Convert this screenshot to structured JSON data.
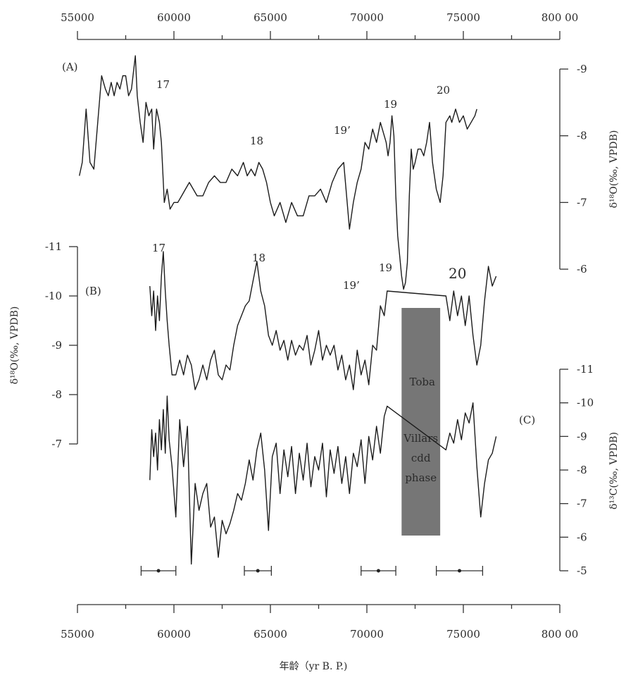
{
  "chart_data": [
    {
      "panel": "(A)",
      "type": "line",
      "xlim": [
        55000,
        80000
      ],
      "ylim": [
        -6,
        -9
      ],
      "y_reversed": true,
      "ylabel": "δ¹⁸O(‰, VPDB)",
      "yticks": [
        "-9",
        "-8",
        "-7",
        "-6"
      ],
      "annotations": [
        "17",
        "18",
        "19’",
        "19",
        "20"
      ],
      "series": [
        {
          "x": [
            55100,
            55250,
            55450,
            55650,
            55850,
            56050,
            56250,
            56450,
            56600,
            56750,
            56900,
            57050,
            57200,
            57350,
            57500,
            57650,
            57800,
            58000,
            58100,
            58250,
            58400,
            58550,
            58700,
            58850,
            58950,
            59100,
            59250,
            59350,
            59500,
            59650,
            59800,
            60000,
            60200,
            60400,
            60600,
            60800,
            61000,
            61200,
            61500,
            61800,
            62100,
            62400,
            62700,
            63000,
            63300,
            63600,
            63800,
            64000,
            64200,
            64400,
            64600,
            64800,
            65000,
            65200,
            65500,
            65800,
            66100,
            66400,
            66700,
            67000,
            67300,
            67600,
            67900,
            68200,
            68500,
            68800,
            69100,
            69300,
            69500,
            69700,
            69900,
            70100,
            70300,
            70500,
            70700,
            70900,
            71000,
            71100,
            71200,
            71300,
            71400,
            71500,
            71600,
            71700,
            71800,
            71900,
            72000,
            72100,
            72200,
            72300,
            72400,
            72500,
            72650,
            72800,
            72950,
            73100,
            73250,
            73400,
            73600,
            73800,
            73950,
            74100,
            74300,
            74400,
            74600,
            74800,
            75000,
            75200,
            75400,
            75600,
            75700
          ],
          "y": [
            -7.4,
            -7.6,
            -8.4,
            -7.6,
            -7.5,
            -8.2,
            -8.9,
            -8.7,
            -8.6,
            -8.8,
            -8.6,
            -8.8,
            -8.7,
            -8.9,
            -8.9,
            -8.6,
            -8.7,
            -9.2,
            -8.6,
            -8.2,
            -7.9,
            -8.5,
            -8.3,
            -8.4,
            -7.8,
            -8.4,
            -8.2,
            -7.9,
            -7.0,
            -7.2,
            -6.9,
            -7.0,
            -7.0,
            -7.1,
            -7.2,
            -7.3,
            -7.2,
            -7.1,
            -7.1,
            -7.3,
            -7.4,
            -7.3,
            -7.3,
            -7.5,
            -7.4,
            -7.6,
            -7.4,
            -7.5,
            -7.4,
            -7.6,
            -7.5,
            -7.3,
            -7.0,
            -6.8,
            -7.0,
            -6.7,
            -7.0,
            -6.8,
            -6.8,
            -7.1,
            -7.1,
            -7.2,
            -7.0,
            -7.3,
            -7.5,
            -7.6,
            -6.6,
            -7.0,
            -7.3,
            -7.5,
            -7.9,
            -7.8,
            -8.1,
            -7.9,
            -8.2,
            -8.0,
            -7.9,
            -7.7,
            -7.9,
            -8.3,
            -8.0,
            -7.1,
            -6.5,
            -6.2,
            -5.9,
            -5.7,
            -5.8,
            -6.1,
            -7.1,
            -7.8,
            -7.5,
            -7.6,
            -7.8,
            -7.8,
            -7.7,
            -7.9,
            -8.2,
            -7.6,
            -7.2,
            -7.0,
            -7.4,
            -8.2,
            -8.3,
            -8.2,
            -8.4,
            -8.2,
            -8.3,
            -8.1,
            -8.2,
            -8.3,
            -8.4
          ]
        }
      ]
    },
    {
      "panel": "(B)",
      "type": "line",
      "xlim": [
        55000,
        80000
      ],
      "ylim": [
        -7,
        -11
      ],
      "y_reversed": true,
      "ylabel": "δ¹⁸O(‰, VPDB)",
      "yticks": [
        "-11",
        "-10",
        "-9",
        "-8",
        "-7"
      ],
      "annotations": [
        "17",
        "18",
        "19’",
        "19",
        "20"
      ],
      "series": [
        {
          "x": [
            58750,
            58850,
            58950,
            59050,
            59150,
            59250,
            59350,
            59450,
            59550,
            59650,
            59750,
            59900,
            60100,
            60300,
            60500,
            60700,
            60900,
            61100,
            61300,
            61500,
            61700,
            61900,
            62100,
            62300,
            62500,
            62700,
            62900,
            63100,
            63300,
            63500,
            63700,
            63900,
            64100,
            64300,
            64500,
            64700,
            64900,
            65100,
            65300,
            65500,
            65700,
            65900,
            66100,
            66300,
            66500,
            66700,
            66900,
            67100,
            67300,
            67500,
            67700,
            67900,
            68100,
            68300,
            68500,
            68700,
            68900,
            69100,
            69300,
            69500,
            69700,
            69900,
            70100,
            70300,
            70500,
            70700,
            70900,
            71050,
            74100,
            74300,
            74500,
            74700,
            74900,
            75100,
            75300,
            75500,
            75700,
            75900,
            76100,
            76300,
            76500,
            76700
          ],
          "y": [
            -10.2,
            -9.6,
            -10.1,
            -9.3,
            -10.0,
            -9.5,
            -10.4,
            -10.9,
            -10.1,
            -9.5,
            -9.0,
            -8.4,
            -8.4,
            -8.7,
            -8.4,
            -8.8,
            -8.6,
            -8.1,
            -8.3,
            -8.6,
            -8.3,
            -8.7,
            -8.9,
            -8.4,
            -8.3,
            -8.6,
            -8.5,
            -9.0,
            -9.4,
            -9.6,
            -9.8,
            -9.9,
            -10.3,
            -10.7,
            -10.1,
            -9.8,
            -9.2,
            -9.0,
            -9.3,
            -8.9,
            -9.1,
            -8.7,
            -9.1,
            -8.8,
            -9.0,
            -8.9,
            -9.2,
            -8.6,
            -8.9,
            -9.3,
            -8.7,
            -9.0,
            -8.8,
            -9.0,
            -8.5,
            -8.8,
            -8.3,
            -8.6,
            -8.1,
            -8.9,
            -8.4,
            -8.7,
            -8.2,
            -9.0,
            -8.9,
            -9.8,
            -9.6,
            -10.1,
            -10.0,
            -9.5,
            -10.1,
            -9.6,
            -10.0,
            -9.4,
            -10.0,
            -9.2,
            -8.6,
            -9.0,
            -9.9,
            -10.6,
            -10.2,
            -10.4
          ]
        }
      ]
    },
    {
      "panel": "(C)",
      "type": "line",
      "xlim": [
        55000,
        80000
      ],
      "ylim": [
        -5,
        -11
      ],
      "y_reversed": true,
      "ylabel": "δ¹³C(‰, VPDB)",
      "yticks": [
        "-11",
        "-10",
        "-9",
        "-8",
        "-7",
        "-6",
        "-5"
      ],
      "series": [
        {
          "x": [
            58750,
            58850,
            58950,
            59050,
            59150,
            59250,
            59350,
            59450,
            59550,
            59650,
            59750,
            59900,
            60100,
            60300,
            60500,
            60700,
            60900,
            61100,
            61300,
            61500,
            61700,
            61900,
            62100,
            62300,
            62500,
            62700,
            62900,
            63100,
            63300,
            63500,
            63700,
            63900,
            64100,
            64300,
            64500,
            64700,
            64900,
            65100,
            65300,
            65500,
            65700,
            65900,
            66100,
            66300,
            66500,
            66700,
            66900,
            67100,
            67300,
            67500,
            67700,
            67900,
            68100,
            68300,
            68500,
            68700,
            68900,
            69100,
            69300,
            69500,
            69700,
            69900,
            70100,
            70300,
            70500,
            70700,
            70900,
            71050,
            74100,
            74300,
            74500,
            74700,
            74900,
            75100,
            75300,
            75500,
            75700,
            75900,
            76100,
            76300,
            76500,
            76700
          ],
          "y": [
            -7.7,
            -9.2,
            -8.4,
            -9.1,
            -8.0,
            -9.5,
            -8.6,
            -9.8,
            -8.5,
            -10.2,
            -8.9,
            -8.1,
            -6.6,
            -9.5,
            -8.1,
            -9.3,
            -5.2,
            -7.6,
            -6.8,
            -7.3,
            -7.6,
            -6.3,
            -6.6,
            -5.4,
            -6.5,
            -6.1,
            -6.4,
            -6.8,
            -7.3,
            -7.1,
            -7.6,
            -8.3,
            -7.7,
            -8.6,
            -9.1,
            -8.0,
            -6.2,
            -8.4,
            -8.8,
            -7.3,
            -8.6,
            -7.8,
            -8.7,
            -7.3,
            -8.5,
            -7.7,
            -8.8,
            -7.5,
            -8.4,
            -8.0,
            -8.8,
            -7.2,
            -8.6,
            -7.9,
            -8.7,
            -7.6,
            -8.4,
            -7.3,
            -8.5,
            -8.1,
            -8.9,
            -7.6,
            -9.0,
            -8.3,
            -9.3,
            -8.5,
            -9.6,
            -9.9,
            -8.6,
            -9.1,
            -8.8,
            -9.5,
            -8.9,
            -9.7,
            -9.4,
            -10.0,
            -8.1,
            -6.6,
            -7.6,
            -8.3,
            -8.5,
            -9.0
          ]
        }
      ]
    }
  ],
  "x_axis": {
    "label": "年龄（yr B. P.)",
    "ticks": [
      "55000",
      "60000",
      "65000",
      "70000",
      "75000",
      "800 00"
    ],
    "tick_values": [
      55000,
      60000,
      65000,
      70000,
      75000,
      80000
    ]
  },
  "shaded_band": {
    "x": [
      71800,
      73800
    ],
    "color": "#767676",
    "lines": [
      "Toba",
      "Villars",
      "cdd",
      "phase"
    ]
  },
  "dating_markers": [
    {
      "x": 59200,
      "err": 900
    },
    {
      "x": 64350,
      "err": 700
    },
    {
      "x": 70600,
      "err": 900
    },
    {
      "x": 74800,
      "err": 1200
    }
  ]
}
